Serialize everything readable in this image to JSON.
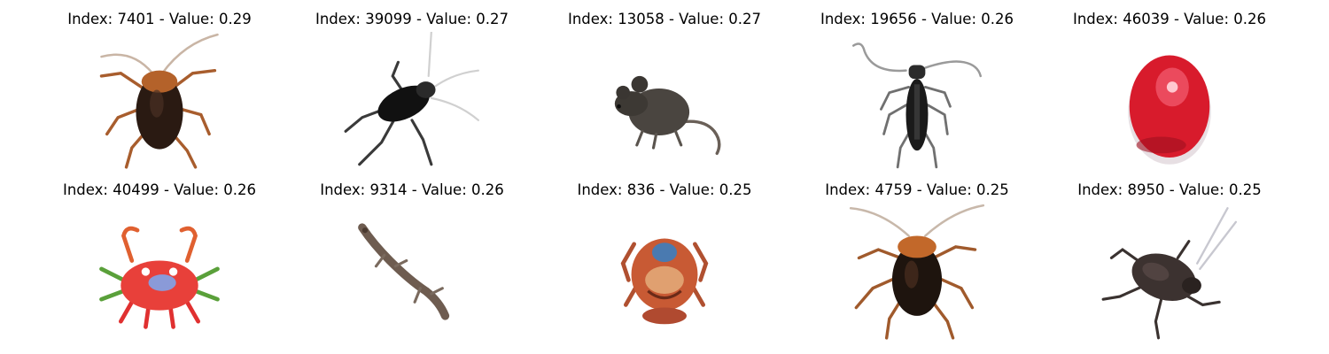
{
  "grid": {
    "rows": 2,
    "cols": 5,
    "items": [
      {
        "title": "Index: 7401 - Value: 0.29",
        "index": 7401,
        "value": 0.29,
        "subject": "cockroach"
      },
      {
        "title": "Index: 39099 - Value: 0.27",
        "index": 39099,
        "value": 0.27,
        "subject": "cockroach"
      },
      {
        "title": "Index: 13058 - Value: 0.27",
        "index": 13058,
        "value": 0.27,
        "subject": "mouse"
      },
      {
        "title": "Index: 19656 - Value: 0.26",
        "index": 19656,
        "value": 0.26,
        "subject": "beetle"
      },
      {
        "title": "Index: 46039 - Value: 0.26",
        "index": 46039,
        "value": 0.26,
        "subject": "apple"
      },
      {
        "title": "Index: 40499 - Value: 0.26",
        "index": 40499,
        "value": 0.26,
        "subject": "crab"
      },
      {
        "title": "Index: 9314 - Value: 0.26",
        "index": 9314,
        "value": 0.26,
        "subject": "lizard"
      },
      {
        "title": "Index: 836 - Value: 0.25",
        "index": 836,
        "value": 0.25,
        "subject": "crab"
      },
      {
        "title": "Index: 4759 - Value: 0.25",
        "index": 4759,
        "value": 0.25,
        "subject": "cockroach"
      },
      {
        "title": "Index: 8950 - Value: 0.25",
        "index": 8950,
        "value": 0.25,
        "subject": "cockroach"
      }
    ]
  }
}
